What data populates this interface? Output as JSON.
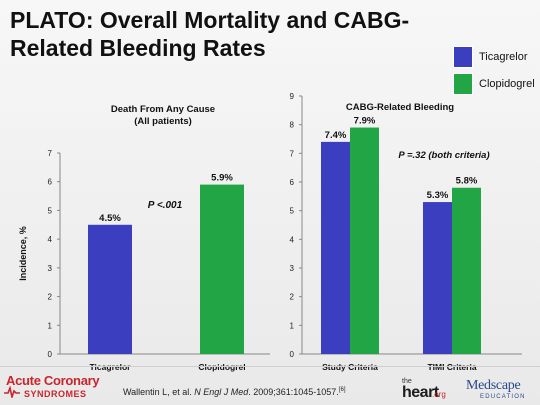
{
  "slide": {
    "title": "PLATO: Overall Mortality and CABG-Related Bleeding Rates"
  },
  "legend": [
    {
      "label": "Ticagrelor",
      "color": "#3b3fbf"
    },
    {
      "label": "Clopidogrel",
      "color": "#22a645"
    }
  ],
  "chart_data": [
    {
      "type": "bar",
      "title": "Death From Any Cause",
      "subtitle": "(All patients)",
      "ylabel": "Incidence, %",
      "ylim": [
        0,
        7
      ],
      "yticks": [
        0,
        1,
        2,
        3,
        4,
        5,
        6,
        7
      ],
      "categories": [
        "Ticagrelor",
        "Clopidogrel"
      ],
      "values": [
        4.5,
        5.9
      ],
      "data_labels": [
        "4.5%",
        "5.9%"
      ],
      "colors": [
        "#3b3fbf",
        "#22a645"
      ],
      "annotation": "P <.001",
      "grid": false
    },
    {
      "type": "bar",
      "title": "CABG-Related Bleeding",
      "ylim": [
        0,
        9
      ],
      "yticks": [
        0,
        1,
        2,
        3,
        4,
        5,
        6,
        7,
        8,
        9
      ],
      "categories": [
        "Study Criteria",
        "TIMI Criteria"
      ],
      "series": [
        {
          "name": "Ticagrelor",
          "values": [
            7.4,
            5.3
          ],
          "data_labels": [
            "7.4%",
            "5.3%"
          ],
          "color": "#3b3fbf"
        },
        {
          "name": "Clopidogrel",
          "values": [
            7.9,
            5.8
          ],
          "data_labels": [
            "7.9%",
            "5.8%"
          ],
          "color": "#22a645"
        }
      ],
      "annotation": "P =.32 (both criteria)",
      "grid": false
    }
  ],
  "footer": {
    "acs_logo_top": "Acute Coronary",
    "acs_logo_bottom": "SYNDROMES",
    "citation_authors": "Wallentin L, et al. ",
    "citation_journal": "N Engl J Med",
    "citation_details": ". 2009;361:1045-1057.",
    "citation_ref": "[6]",
    "heart_logo_small": "the",
    "heart_logo_big": "heart",
    "heart_logo_org": ".org",
    "medscape_logo": "Medscape",
    "medscape_sub": "EDUCATION"
  }
}
